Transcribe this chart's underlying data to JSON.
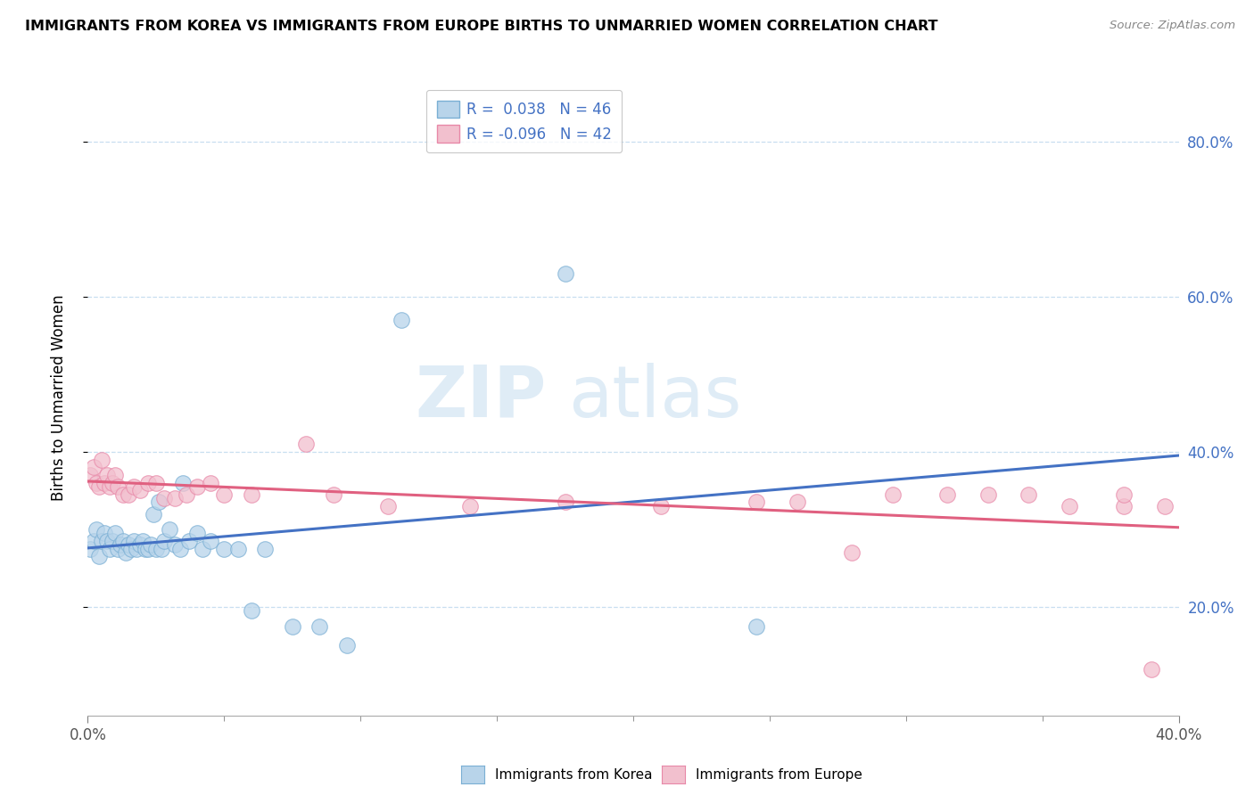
{
  "title": "IMMIGRANTS FROM KOREA VS IMMIGRANTS FROM EUROPE BIRTHS TO UNMARRIED WOMEN CORRELATION CHART",
  "source": "Source: ZipAtlas.com",
  "ylabel": "Births to Unmarried Women",
  "xmin": 0.0,
  "xmax": 0.4,
  "ymin": 0.06,
  "ymax": 0.88,
  "korea_color": "#b8d4ea",
  "korea_edge": "#7aafd4",
  "europe_color": "#f2c0ce",
  "europe_edge": "#e888a8",
  "trend_korea_color": "#4472c4",
  "trend_europe_color": "#e06080",
  "grid_color": "#c8dff0",
  "watermark_color": "#c8dff0",
  "korea_R": 0.038,
  "korea_N": 46,
  "europe_R": -0.096,
  "europe_N": 42,
  "ytick_vals": [
    0.2,
    0.4,
    0.6,
    0.8
  ],
  "korea_scatter_x": [
    0.001,
    0.002,
    0.003,
    0.004,
    0.005,
    0.006,
    0.007,
    0.008,
    0.009,
    0.01,
    0.011,
    0.012,
    0.013,
    0.014,
    0.015,
    0.016,
    0.017,
    0.018,
    0.019,
    0.02,
    0.021,
    0.022,
    0.023,
    0.024,
    0.025,
    0.026,
    0.027,
    0.028,
    0.03,
    0.032,
    0.034,
    0.035,
    0.037,
    0.04,
    0.042,
    0.045,
    0.05,
    0.055,
    0.06,
    0.065,
    0.075,
    0.085,
    0.095,
    0.115,
    0.175,
    0.245
  ],
  "korea_scatter_y": [
    0.275,
    0.285,
    0.3,
    0.265,
    0.285,
    0.295,
    0.285,
    0.275,
    0.285,
    0.295,
    0.275,
    0.28,
    0.285,
    0.27,
    0.28,
    0.275,
    0.285,
    0.275,
    0.28,
    0.285,
    0.275,
    0.275,
    0.28,
    0.32,
    0.275,
    0.335,
    0.275,
    0.285,
    0.3,
    0.28,
    0.275,
    0.36,
    0.285,
    0.295,
    0.275,
    0.285,
    0.275,
    0.275,
    0.195,
    0.275,
    0.175,
    0.175,
    0.15,
    0.57,
    0.63,
    0.175
  ],
  "europe_scatter_x": [
    0.001,
    0.002,
    0.003,
    0.004,
    0.005,
    0.006,
    0.007,
    0.008,
    0.009,
    0.01,
    0.011,
    0.013,
    0.015,
    0.017,
    0.019,
    0.022,
    0.025,
    0.028,
    0.032,
    0.036,
    0.04,
    0.045,
    0.05,
    0.06,
    0.08,
    0.09,
    0.11,
    0.14,
    0.175,
    0.21,
    0.245,
    0.26,
    0.28,
    0.295,
    0.315,
    0.33,
    0.345,
    0.36,
    0.38,
    0.38,
    0.39,
    0.395
  ],
  "europe_scatter_y": [
    0.37,
    0.38,
    0.36,
    0.355,
    0.39,
    0.36,
    0.37,
    0.355,
    0.36,
    0.37,
    0.355,
    0.345,
    0.345,
    0.355,
    0.35,
    0.36,
    0.36,
    0.34,
    0.34,
    0.345,
    0.355,
    0.36,
    0.345,
    0.345,
    0.41,
    0.345,
    0.33,
    0.33,
    0.335,
    0.33,
    0.335,
    0.335,
    0.27,
    0.345,
    0.345,
    0.345,
    0.345,
    0.33,
    0.33,
    0.345,
    0.12,
    0.33
  ]
}
